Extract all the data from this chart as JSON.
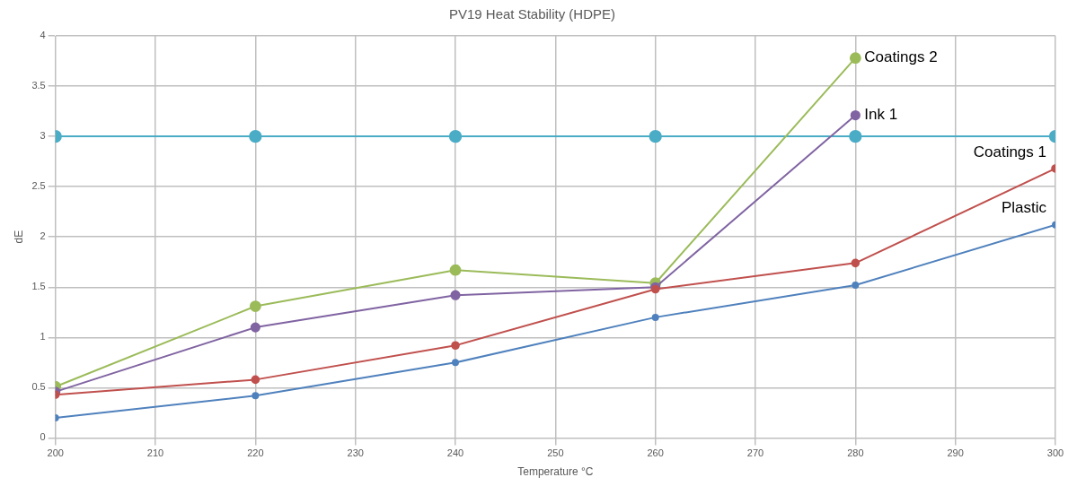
{
  "chart_data": {
    "type": "line",
    "title": "PV19 Heat Stability (HDPE)",
    "xlabel": "Temperature °C",
    "ylabel": "dE",
    "x": [
      200,
      220,
      240,
      260,
      280,
      300
    ],
    "series": [
      {
        "name": "Plastic",
        "color": "#4f81bd",
        "values": [
          0.2,
          0.42,
          0.75,
          1.2,
          1.52,
          2.12
        ]
      },
      {
        "name": "Coatings 1",
        "color": "#c0504d",
        "values": [
          0.43,
          0.58,
          0.92,
          1.48,
          1.74,
          2.68
        ]
      },
      {
        "name": "Ink 1",
        "color": "#8064a2",
        "values": [
          0.46,
          1.1,
          1.42,
          1.5,
          3.21,
          null
        ]
      },
      {
        "name": "Coatings 2",
        "color": "#9bbb59",
        "values": [
          0.51,
          1.31,
          1.67,
          1.54,
          3.78,
          null
        ]
      },
      {
        "color": "#4bacc6",
        "values": [
          3,
          3,
          3,
          3,
          3,
          3
        ]
      }
    ],
    "xlim": [
      200,
      300
    ],
    "xticks": [
      200,
      210,
      220,
      230,
      240,
      250,
      260,
      270,
      280,
      290,
      300
    ],
    "ylim": [
      0,
      4
    ],
    "yticks": [
      0,
      0.5,
      1,
      1.5,
      2,
      2.5,
      3,
      3.5,
      4
    ],
    "grid": true,
    "legend": false,
    "marker": "circle",
    "line_style": "solid"
  }
}
